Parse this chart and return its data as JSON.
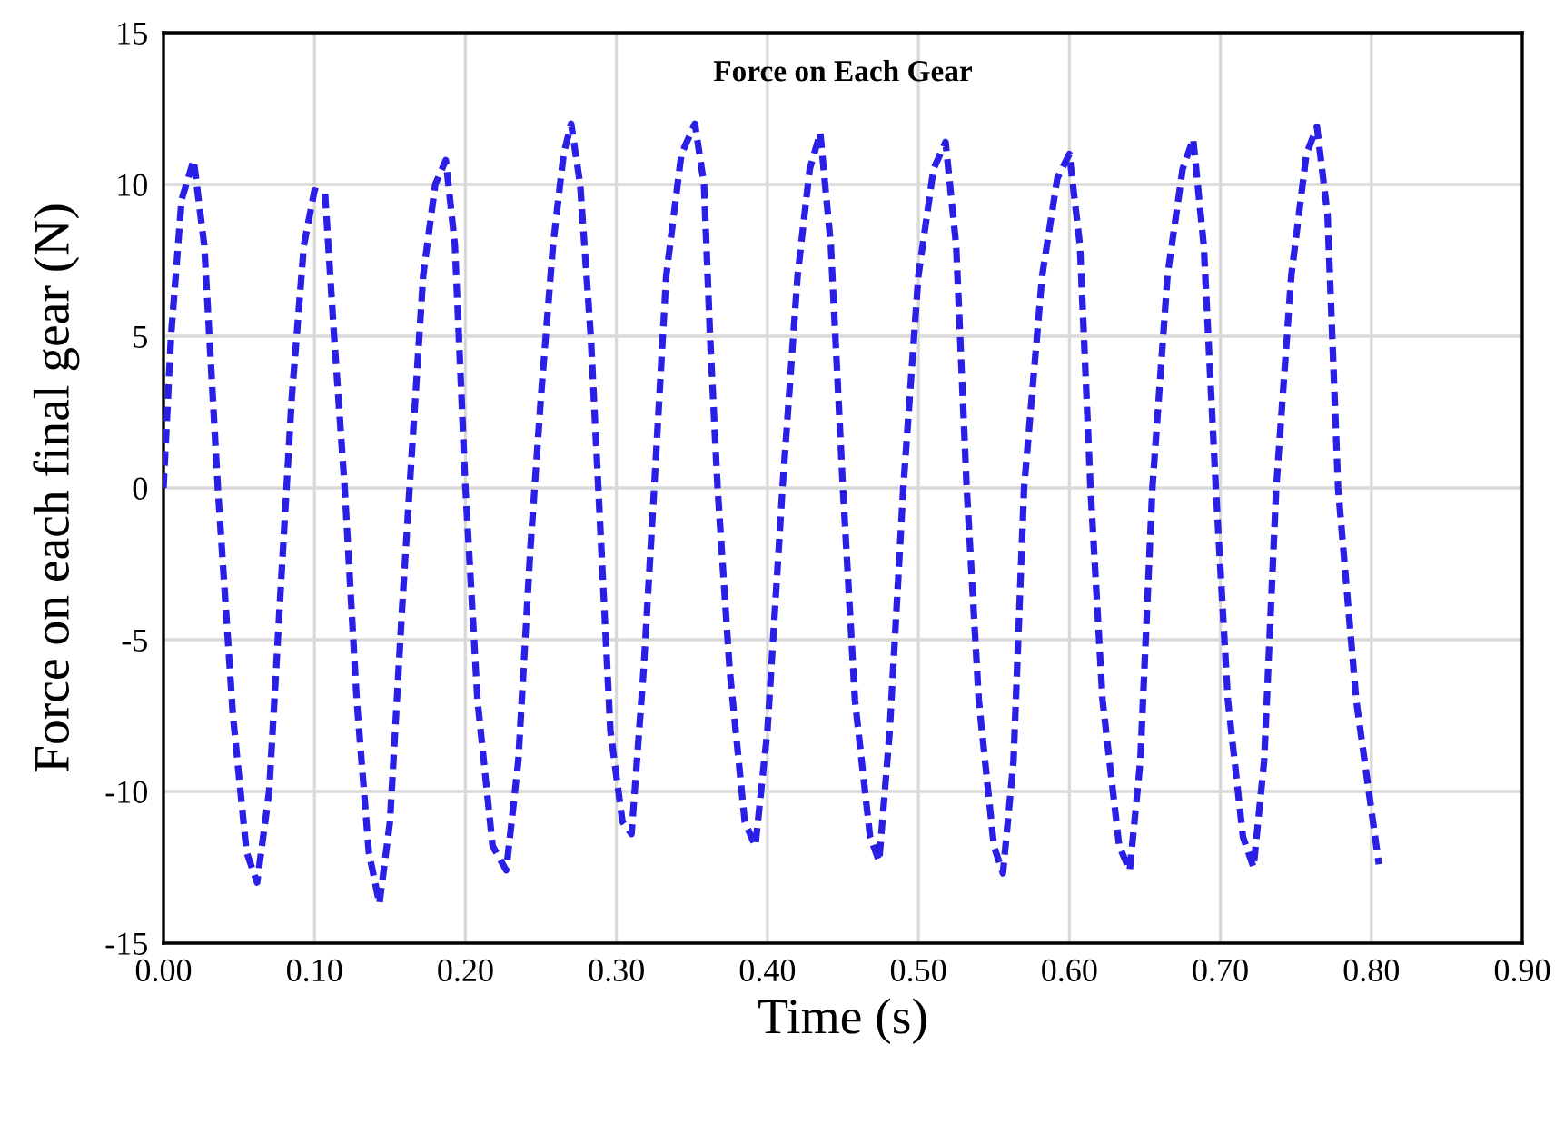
{
  "chart_data": {
    "type": "line",
    "title": "Force on Each Gear",
    "xlabel": "Time (s)",
    "ylabel": "Force on each final gear (N)",
    "xlim": [
      0,
      0.9
    ],
    "xticks": [
      {
        "value": 0,
        "label": "0.00"
      },
      {
        "value": 0.1,
        "label": "0.10"
      },
      {
        "value": 0.2,
        "label": "0.20"
      },
      {
        "value": 0.3,
        "label": "0.30"
      },
      {
        "value": 0.4,
        "label": "0.40"
      },
      {
        "value": 0.5,
        "label": "0.50"
      },
      {
        "value": 0.6,
        "label": "0.60"
      },
      {
        "value": 0.7,
        "label": "0.70"
      },
      {
        "value": 0.8,
        "label": "0.80"
      },
      {
        "value": 0.9,
        "label": "0.90"
      }
    ],
    "ylim": [
      -15,
      15
    ],
    "yticks": [
      -15,
      -10,
      -5,
      0,
      5,
      10,
      15
    ],
    "grid": true,
    "line_style": "dashed",
    "marker": "none",
    "series": [
      {
        "color": "#2a1fe6",
        "x": [
          0.0,
          0.005,
          0.012,
          0.02,
          0.027,
          0.036,
          0.046,
          0.055,
          0.062,
          0.07,
          0.078,
          0.085,
          0.093,
          0.1,
          0.107,
          0.113,
          0.12,
          0.128,
          0.136,
          0.143,
          0.15,
          0.158,
          0.163,
          0.172,
          0.18,
          0.187,
          0.193,
          0.2,
          0.208,
          0.218,
          0.227,
          0.235,
          0.243,
          0.25,
          0.258,
          0.265,
          0.27,
          0.276,
          0.283,
          0.288,
          0.296,
          0.304,
          0.31,
          0.318,
          0.325,
          0.333,
          0.343,
          0.352,
          0.358,
          0.362,
          0.367,
          0.375,
          0.385,
          0.392,
          0.4,
          0.41,
          0.42,
          0.428,
          0.435,
          0.442,
          0.45,
          0.458,
          0.468,
          0.474,
          0.481,
          0.49,
          0.5,
          0.51,
          0.518,
          0.525,
          0.532,
          0.54,
          0.55,
          0.556,
          0.563,
          0.57,
          0.582,
          0.592,
          0.6,
          0.607,
          0.614,
          0.622,
          0.633,
          0.64,
          0.647,
          0.655,
          0.665,
          0.675,
          0.682,
          0.689,
          0.697,
          0.705,
          0.715,
          0.722,
          0.729,
          0.737,
          0.747,
          0.757,
          0.764,
          0.771,
          0.778,
          0.79,
          0.805
        ],
        "values": [
          0,
          5,
          9.5,
          10.8,
          8,
          0,
          -7.5,
          -12,
          -13.0,
          -10,
          -3,
          3,
          8,
          9.8,
          9.7,
          5,
          0,
          -7,
          -12,
          -13.7,
          -11,
          -4,
          0,
          7,
          10,
          10.8,
          8,
          0,
          -7,
          -11.8,
          -12.6,
          -9,
          -2,
          3,
          8,
          11,
          12.0,
          10,
          5,
          0,
          -8,
          -11,
          -11.4,
          -6,
          0,
          7,
          11,
          12.0,
          10,
          5,
          0,
          -6,
          -11,
          -11.8,
          -8,
          0,
          7,
          10.5,
          11.7,
          8,
          0,
          -7,
          -11.5,
          -12.3,
          -8,
          0,
          7,
          10.5,
          11.4,
          8,
          0,
          -7,
          -11.8,
          -12.7,
          -9,
          0,
          7,
          10.2,
          11.0,
          8,
          0,
          -7,
          -11.8,
          -12.6,
          -9,
          0,
          7,
          10.5,
          11.5,
          8,
          0,
          -7,
          -11.5,
          -12.5,
          -9,
          0,
          7,
          11,
          11.9,
          9,
          0,
          -7,
          -12.4
        ]
      }
    ]
  }
}
